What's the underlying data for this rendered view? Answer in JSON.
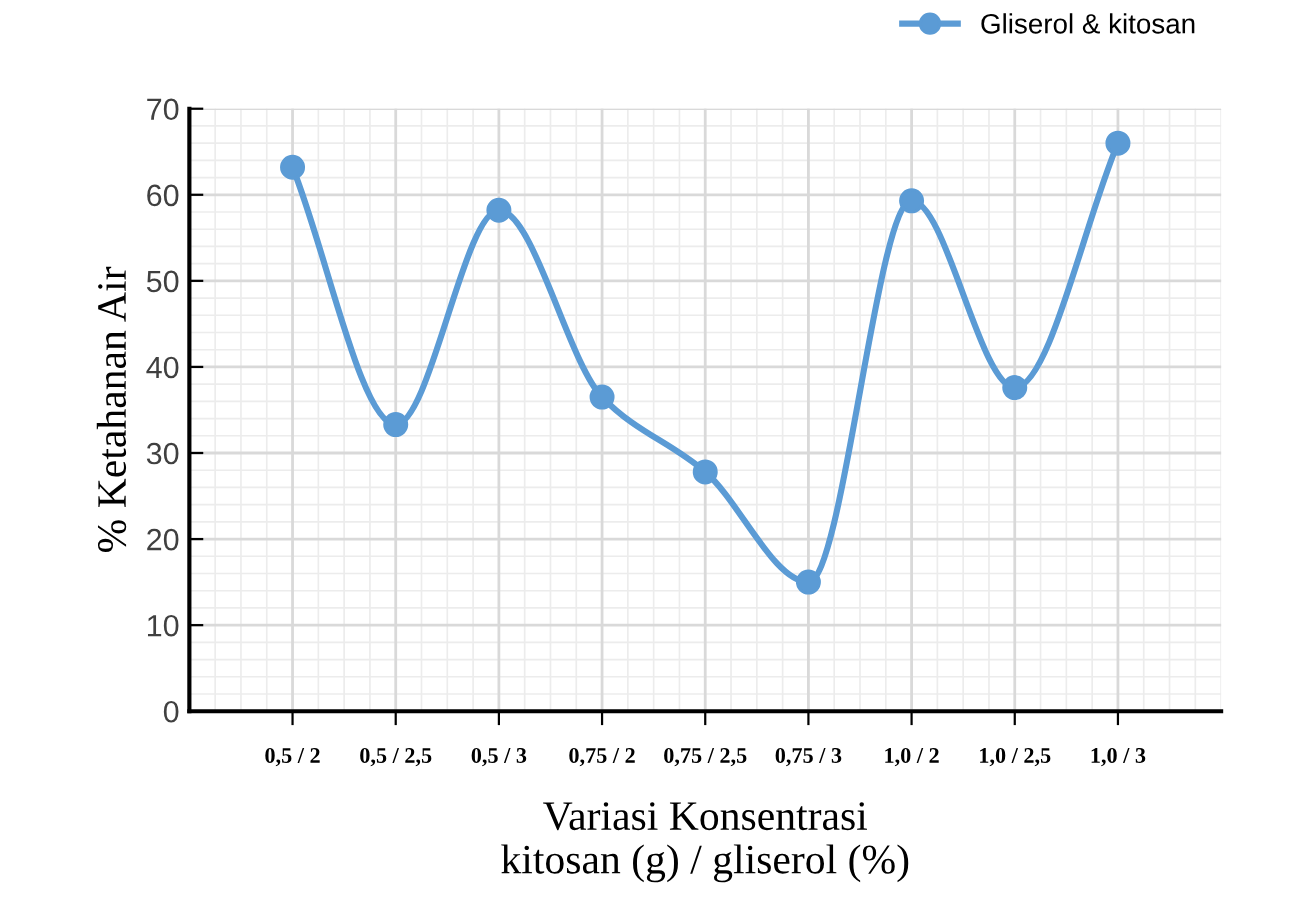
{
  "chart_data": {
    "type": "line",
    "xlabel": "Variasi Konsentrasi\nkitosan (g) / gliserol (%)",
    "ylabel": "% Ketahanan Air",
    "categories": [
      "0,5 / 2",
      "0,5 / 2,5",
      "0,5 / 3",
      "0,75 / 2",
      "0,75 / 2,5",
      "0,75 / 3",
      "1,0 / 2",
      "1,0 / 2,5",
      "1,0 / 3"
    ],
    "series": [
      {
        "name": "Gliserol & kitosan",
        "color": "#5b9bd5",
        "values": [
          63.2,
          33.3,
          58.2,
          36.5,
          27.8,
          15,
          59.3,
          37.6,
          66
        ]
      }
    ],
    "ylim": [
      0,
      70
    ],
    "yticks": [
      0,
      10,
      20,
      30,
      40,
      50,
      60,
      70
    ],
    "grid": true,
    "legend": "top right",
    "marker": "circle",
    "line_style": "solid"
  }
}
